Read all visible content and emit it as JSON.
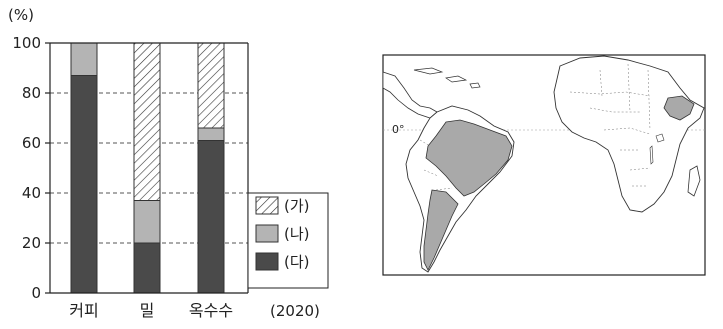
{
  "chart_data": {
    "type": "bar",
    "stacked": true,
    "y_unit_label": "(%)",
    "ylim": [
      0,
      100
    ],
    "y_ticks": [
      0,
      20,
      40,
      60,
      80,
      100
    ],
    "grid": "dashed horizontal",
    "categories": [
      "커피",
      "밀",
      "옥수수"
    ],
    "series": [
      {
        "name": "(다)",
        "values": [
          87,
          20,
          61
        ],
        "pattern": "dark"
      },
      {
        "name": "(나)",
        "values": [
          13,
          17,
          5
        ],
        "pattern": "gray"
      },
      {
        "name": "(가)",
        "values": [
          0,
          63,
          34
        ],
        "pattern": "hatch"
      }
    ],
    "legend_order": [
      "(가)",
      "(나)",
      "(다)"
    ],
    "legend_position": "right",
    "year_note": "(2020)",
    "colors": {
      "dark": "#4a4a4a",
      "gray": "#b4b4b4",
      "hatch": "#ffffff",
      "axis": "#222222",
      "grid": "#555555"
    }
  },
  "map": {
    "description": "Map of South America and Africa with highlighted countries in gray",
    "equator_label": "0°",
    "colors": {
      "land": "#ffffff",
      "highlight": "#a9a9a9",
      "border": "#333333",
      "sea": "#ffffff"
    }
  }
}
